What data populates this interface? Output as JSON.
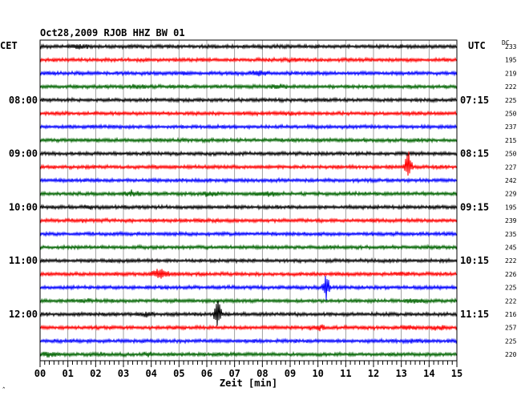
{
  "title": "Oct28,2009   RJOB HHZ BW 01",
  "left_zone": "CET",
  "right_zone": "UTC",
  "dc_header": "DC",
  "xlabel": "Zeit [min]",
  "corner_mark": "ˆ",
  "chart_data": {
    "type": "line",
    "x_ticks": [
      "00",
      "01",
      "02",
      "03",
      "04",
      "05",
      "06",
      "07",
      "08",
      "09",
      "10",
      "11",
      "12",
      "13",
      "14",
      "15"
    ],
    "xlim": [
      0,
      15
    ],
    "left_time_labels": [
      {
        "row": 4,
        "label": "08:00"
      },
      {
        "row": 8,
        "label": "09:00"
      },
      {
        "row": 12,
        "label": "10:00"
      },
      {
        "row": 16,
        "label": "11:00"
      },
      {
        "row": 20,
        "label": "12:00"
      }
    ],
    "right_time_labels": [
      {
        "row": 4,
        "label": "07:15"
      },
      {
        "row": 8,
        "label": "08:15"
      },
      {
        "row": 12,
        "label": "09:15"
      },
      {
        "row": 16,
        "label": "10:15"
      },
      {
        "row": 20,
        "label": "11:15"
      }
    ],
    "dc_values": [
      233,
      195,
      219,
      222,
      225,
      250,
      237,
      215,
      250,
      227,
      242,
      229,
      195,
      239,
      235,
      245,
      222,
      226,
      225,
      222,
      216,
      257,
      225,
      220
    ],
    "row_colors": [
      "#000000",
      "#ff0000",
      "#0000ff",
      "#006400"
    ],
    "events": [
      {
        "row": 0,
        "minute": 1.4,
        "amp": 1.3
      },
      {
        "row": 1,
        "minute": 9.0,
        "amp": 1.2
      },
      {
        "row": 2,
        "minute": 5.2,
        "amp": 1.1
      },
      {
        "row": 2,
        "minute": 7.9,
        "amp": 1.4
      },
      {
        "row": 3,
        "minute": 3.5,
        "amp": 1.2
      },
      {
        "row": 3,
        "minute": 8.5,
        "amp": 1.3
      },
      {
        "row": 5,
        "minute": 8.8,
        "amp": 1.1
      },
      {
        "row": 9,
        "minute": 13.25,
        "amp": 4.2
      },
      {
        "row": 11,
        "minute": 3.3,
        "amp": 1.5
      },
      {
        "row": 11,
        "minute": 6.1,
        "amp": 1.5
      },
      {
        "row": 11,
        "minute": 8.2,
        "amp": 1.4
      },
      {
        "row": 12,
        "minute": 1.8,
        "amp": 1.2
      },
      {
        "row": 13,
        "minute": 1.5,
        "amp": 1.1
      },
      {
        "row": 17,
        "minute": 4.3,
        "amp": 2.0
      },
      {
        "row": 17,
        "minute": 13.0,
        "amp": 1.2
      },
      {
        "row": 18,
        "minute": 10.3,
        "amp": 4.0
      },
      {
        "row": 19,
        "minute": 1.6,
        "amp": 1.2
      },
      {
        "row": 19,
        "minute": 13.5,
        "amp": 1.3
      },
      {
        "row": 20,
        "minute": 6.4,
        "amp": 4.5
      },
      {
        "row": 20,
        "minute": 3.8,
        "amp": 1.4
      },
      {
        "row": 21,
        "minute": 10.0,
        "amp": 1.5
      },
      {
        "row": 21,
        "minute": 13.3,
        "amp": 1.3
      },
      {
        "row": 21,
        "minute": 14.3,
        "amp": 1.3
      },
      {
        "row": 22,
        "minute": 13.4,
        "amp": 1.2
      },
      {
        "row": 23,
        "minute": 0.3,
        "amp": 1.4
      },
      {
        "row": 23,
        "minute": 2.1,
        "amp": 1.2
      },
      {
        "row": 23,
        "minute": 3.9,
        "amp": 1.2
      }
    ]
  }
}
